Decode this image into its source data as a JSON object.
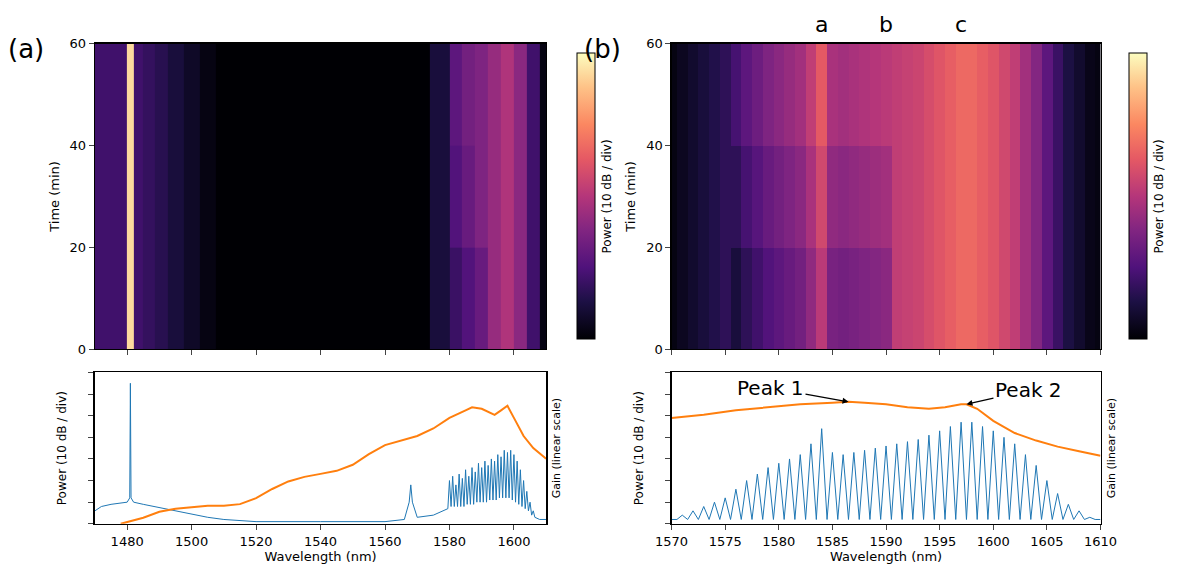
{
  "chart_data": [
    {
      "type": "heatmap",
      "panel_label": "(a)",
      "x": [
        1470,
        1475,
        1479,
        1481,
        1483,
        1487,
        1490,
        1495,
        1500,
        1505,
        1510,
        1520,
        1540,
        1560,
        1570,
        1578,
        1582,
        1586,
        1590,
        1594,
        1598,
        1602,
        1606,
        1610
      ],
      "y": [
        10,
        30,
        50
      ],
      "z": [
        [
          -55,
          -55,
          -55,
          -5,
          -55,
          -57,
          -59,
          -62,
          -65,
          -68,
          -70,
          -70,
          -70,
          -70,
          -70,
          -62,
          -56,
          -52,
          -48,
          -40,
          -36,
          -42,
          -55,
          -68
        ],
        [
          -55,
          -55,
          -55,
          -5,
          -55,
          -57,
          -59,
          -62,
          -65,
          -68,
          -70,
          -70,
          -70,
          -70,
          -70,
          -62,
          -52,
          -48,
          -44,
          -40,
          -36,
          -42,
          -55,
          -68
        ],
        [
          -55,
          -55,
          -55,
          -5,
          -55,
          -57,
          -59,
          -62,
          -65,
          -68,
          -70,
          -70,
          -70,
          -70,
          -70,
          -62,
          -50,
          -46,
          -44,
          -40,
          -36,
          -42,
          -55,
          -68
        ]
      ],
      "xlim": [
        1470,
        1610
      ],
      "xticks": [
        1480,
        1500,
        1520,
        1540,
        1560,
        1580,
        1600
      ],
      "ylim": [
        0,
        60
      ],
      "yticks": [
        0,
        20,
        40,
        60
      ],
      "y_label": "Time (min)",
      "color": "magma",
      "tick_labels": "y",
      "colorbar": {
        "label": "Power (10 dB / div)",
        "zlim": [
          -70,
          0
        ],
        "tick_labels": false
      }
    },
    {
      "type": "line",
      "x_label": "Wavelength (nm)",
      "y_label": "Power (10 dB / div)",
      "y2_label": "Gain (linear scale)",
      "xlim": [
        1470,
        1610
      ],
      "xticks": [
        1480,
        1500,
        1520,
        1540,
        1560,
        1580,
        1600
      ],
      "ylim": [
        -70,
        0
      ],
      "yticks": [
        -70,
        -60,
        -50,
        -40,
        -30,
        -20,
        -10,
        0
      ],
      "y2lim": [
        0,
        1
      ],
      "tick_labels": "x",
      "series": [
        {
          "color": "#1f77b4",
          "x": [
            1470,
            1472,
            1475,
            1478,
            1480,
            1480.8,
            1481,
            1481.2,
            1482,
            1485,
            1490,
            1495,
            1500,
            1505,
            1510,
            1520,
            1540,
            1560,
            1566,
            1567.5,
            1568,
            1568.5,
            1570,
            1575,
            1578,
            1579.5,
            1580,
            1580.5,
            1581,
            1581.5,
            1582,
            1582.5,
            1583,
            1583.5,
            1584,
            1584.5,
            1585,
            1585.5,
            1586,
            1586.5,
            1587,
            1587.5,
            1588,
            1588.5,
            1589,
            1589.5,
            1590,
            1590.5,
            1591,
            1591.5,
            1592,
            1592.5,
            1593,
            1593.5,
            1594,
            1594.5,
            1595,
            1595.5,
            1596,
            1596.5,
            1597,
            1597.5,
            1598,
            1598.5,
            1599,
            1599.5,
            1600,
            1600.5,
            1601,
            1601.5,
            1602,
            1602.5,
            1603,
            1603.5,
            1604,
            1604.5,
            1605,
            1605.5,
            1606,
            1606.5,
            1608,
            1610
          ],
          "values": [
            -64,
            -62,
            -61,
            -60.5,
            -60,
            -58,
            -5,
            -58,
            -60,
            -61,
            -62.5,
            -64,
            -65.5,
            -67,
            -68,
            -69,
            -69,
            -69,
            -68,
            -60,
            -52,
            -60,
            -67,
            -66,
            -64,
            -63,
            -50,
            -62,
            -48,
            -62,
            -52,
            -62,
            -47,
            -62,
            -49,
            -62,
            -45,
            -61,
            -48,
            -61,
            -44,
            -61,
            -46,
            -60,
            -42,
            -60,
            -44,
            -60,
            -41,
            -60,
            -43,
            -59,
            -40,
            -59,
            -41,
            -59,
            -38,
            -58,
            -39,
            -58,
            -36,
            -58,
            -37,
            -58,
            -36,
            -59,
            -38,
            -60,
            -41,
            -61,
            -45,
            -62,
            -50,
            -63,
            -55,
            -64,
            -60,
            -66,
            -64,
            -67,
            -68,
            -68
          ]
        },
        {
          "color": "#ff7f0e",
          "axis": "y2",
          "x": [
            1478,
            1485,
            1490,
            1495,
            1500,
            1505,
            1510,
            1515,
            1520,
            1525,
            1530,
            1535,
            1540,
            1545,
            1550,
            1555,
            1560,
            1565,
            1570,
            1575,
            1580,
            1585,
            1587,
            1590,
            1594,
            1596,
            1598,
            1600,
            1603,
            1606,
            1610
          ],
          "values": [
            0,
            0.04,
            0.08,
            0.1,
            0.11,
            0.12,
            0.12,
            0.13,
            0.17,
            0.23,
            0.28,
            0.31,
            0.33,
            0.35,
            0.39,
            0.46,
            0.52,
            0.55,
            0.58,
            0.63,
            0.7,
            0.75,
            0.77,
            0.76,
            0.72,
            0.75,
            0.78,
            0.7,
            0.58,
            0.5,
            0.43
          ]
        }
      ]
    },
    {
      "type": "heatmap",
      "panel_label": "(b)",
      "x": [
        1570,
        1571,
        1572,
        1573,
        1574,
        1575,
        1576,
        1577,
        1578,
        1579,
        1580,
        1581,
        1582,
        1583,
        1584,
        1585,
        1586,
        1587,
        1588,
        1589,
        1590,
        1591,
        1592,
        1593,
        1594,
        1595,
        1596,
        1597,
        1598,
        1599,
        1600,
        1601,
        1602,
        1603,
        1604,
        1605,
        1606,
        1607,
        1608,
        1609,
        1610
      ],
      "y": [
        10,
        30,
        50
      ],
      "z": [
        [
          -68,
          -66,
          -64,
          -62,
          -60,
          -58,
          -62,
          -58,
          -55,
          -52,
          -50,
          -48,
          -46,
          -41,
          -34,
          -45,
          -46,
          -45,
          -44,
          -43,
          -42,
          -33,
          -32,
          -31,
          -29,
          -27,
          -25,
          -23,
          -23,
          -25,
          -27,
          -30,
          -33,
          -38,
          -43,
          -50,
          -56,
          -61,
          -64,
          -67,
          -68
        ],
        [
          -68,
          -66,
          -64,
          -62,
          -60,
          -58,
          -58,
          -54,
          -51,
          -48,
          -46,
          -44,
          -42,
          -37,
          -30,
          -41,
          -42,
          -41,
          -40,
          -39,
          -38,
          -33,
          -32,
          -31,
          -29,
          -27,
          -25,
          -23,
          -23,
          -25,
          -27,
          -30,
          -33,
          -38,
          -43,
          -50,
          -56,
          -61,
          -64,
          -67,
          -68
        ],
        [
          -68,
          -66,
          -64,
          -62,
          -60,
          -58,
          -54,
          -50,
          -47,
          -44,
          -42,
          -40,
          -38,
          -33,
          -26,
          -37,
          -38,
          -37,
          -36,
          -35,
          -34,
          -33,
          -32,
          -31,
          -29,
          -27,
          -25,
          -23,
          -23,
          -25,
          -27,
          -30,
          -33,
          -38,
          -43,
          -50,
          -56,
          -61,
          -64,
          -67,
          -68
        ]
      ],
      "xlim": [
        1570,
        1610
      ],
      "xticks": [
        1570,
        1575,
        1580,
        1585,
        1590,
        1595,
        1600,
        1605,
        1610
      ],
      "ylim": [
        0,
        60
      ],
      "yticks": [
        0,
        20,
        40,
        60
      ],
      "y_label": "Time (min)",
      "color": "magma",
      "tick_labels": "y",
      "colorbar": {
        "label": "Power (10 dB / div)",
        "zlim": [
          -70,
          0
        ],
        "tick_labels": false
      },
      "annotations": [
        {
          "text": "a",
          "x": 1584
        },
        {
          "text": "b",
          "x": 1590
        },
        {
          "text": "c",
          "x": 1597
        }
      ]
    },
    {
      "type": "line",
      "x_label": "Wavelength (nm)",
      "y_label": "Power (10 dB / div)",
      "y2_label": "Gain (linear scale)",
      "xlim": [
        1570,
        1610
      ],
      "xticks": [
        1570,
        1575,
        1580,
        1585,
        1590,
        1595,
        1600,
        1605,
        1610
      ],
      "ylim": [
        -70,
        0
      ],
      "yticks": [
        -70,
        -60,
        -50,
        -40,
        -30,
        -20,
        -10,
        0
      ],
      "y2lim": [
        0,
        1
      ],
      "tick_labels": "x",
      "series": [
        {
          "color": "#1f77b4",
          "x": [
            1570,
            1570.5,
            1571,
            1571.5,
            1572,
            1572.5,
            1573,
            1573.5,
            1574,
            1574.5,
            1575,
            1575.5,
            1576,
            1576.5,
            1577,
            1577.5,
            1578,
            1578.5,
            1579,
            1579.5,
            1580,
            1580.5,
            1581,
            1581.5,
            1582,
            1582.5,
            1583,
            1583.5,
            1584,
            1584.5,
            1585,
            1585.5,
            1586,
            1586.5,
            1587,
            1587.5,
            1588,
            1588.5,
            1589,
            1589.5,
            1590,
            1590.5,
            1591,
            1591.5,
            1592,
            1592.5,
            1593,
            1593.5,
            1594,
            1594.5,
            1595,
            1595.5,
            1596,
            1596.5,
            1597,
            1597.5,
            1598,
            1598.5,
            1599,
            1599.5,
            1600,
            1600.5,
            1601,
            1601.5,
            1602,
            1602.5,
            1603,
            1603.5,
            1604,
            1604.5,
            1605,
            1605.5,
            1606,
            1606.5,
            1607,
            1607.5,
            1608,
            1608.5,
            1609,
            1609.5,
            1610
          ],
          "values": [
            -68,
            -68,
            -66,
            -68,
            -64,
            -68,
            -62,
            -68,
            -60,
            -68,
            -58,
            -68,
            -54,
            -68,
            -50,
            -68,
            -47,
            -68,
            -44,
            -68,
            -42,
            -68,
            -40,
            -68,
            -38,
            -68,
            -33,
            -68,
            -26,
            -68,
            -37,
            -68,
            -38,
            -68,
            -37,
            -68,
            -36,
            -68,
            -35,
            -68,
            -34,
            -68,
            -33,
            -68,
            -32,
            -68,
            -31,
            -68,
            -29,
            -68,
            -27,
            -68,
            -25,
            -68,
            -23,
            -68,
            -23,
            -68,
            -25,
            -68,
            -27,
            -68,
            -30,
            -68,
            -33,
            -68,
            -38,
            -68,
            -43,
            -68,
            -50,
            -68,
            -56,
            -68,
            -61,
            -68,
            -64,
            -68,
            -67,
            -68,
            -68
          ]
        },
        {
          "color": "#ff7f0e",
          "axis": "y2",
          "x": [
            1570,
            1573,
            1576,
            1579,
            1582,
            1585,
            1586.5,
            1588,
            1590,
            1592,
            1594,
            1595.5,
            1597,
            1597.5,
            1598.5,
            1600,
            1602,
            1604,
            1606,
            1608,
            1610
          ],
          "values": [
            0.7,
            0.72,
            0.75,
            0.77,
            0.79,
            0.8,
            0.806,
            0.8,
            0.79,
            0.77,
            0.76,
            0.77,
            0.79,
            0.79,
            0.76,
            0.68,
            0.6,
            0.55,
            0.51,
            0.48,
            0.45
          ]
        }
      ],
      "annotations": [
        {
          "text": "Peak 1",
          "x": 1586.5,
          "y": 0.806,
          "axis": "y2"
        },
        {
          "text": "Peak 2",
          "x": 1597.5,
          "y": 0.79,
          "axis": "y2"
        }
      ]
    }
  ]
}
